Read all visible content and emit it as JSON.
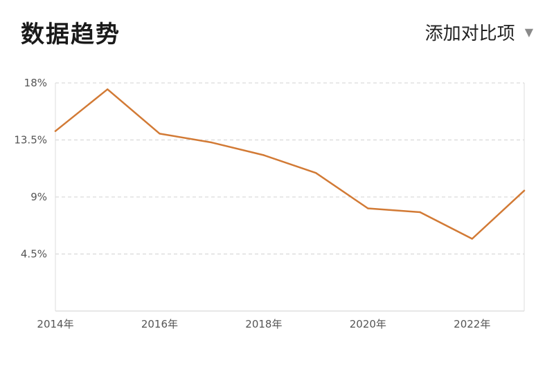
{
  "header": {
    "title": "数据趋势",
    "compare_label": "添加对比项"
  },
  "icons": {
    "compare_dropdown": "chevron-down-icon"
  },
  "colors": {
    "line": "#D27A35"
  },
  "chart_data": {
    "type": "line",
    "title": "",
    "xlabel": "",
    "ylabel": "",
    "x": [
      "2014年",
      "2015年",
      "2016年",
      "2017年",
      "2018年",
      "2019年",
      "2020年",
      "2021年",
      "2022年",
      "2023年"
    ],
    "series": [
      {
        "values": [
          14.2,
          17.5,
          14.0,
          13.3,
          12.3,
          10.9,
          8.1,
          7.8,
          5.7,
          9.5
        ]
      }
    ],
    "ylim": [
      0,
      18
    ],
    "yticks": [
      4.5,
      9,
      13.5,
      18
    ],
    "ytick_labels": [
      "4.5%",
      "9%",
      "13.5%",
      "18%"
    ],
    "xtick_labels": [
      "2014年",
      "2016年",
      "2018年",
      "2020年",
      "2022年"
    ],
    "grid": "horizontal-dashed",
    "legend": "none"
  }
}
